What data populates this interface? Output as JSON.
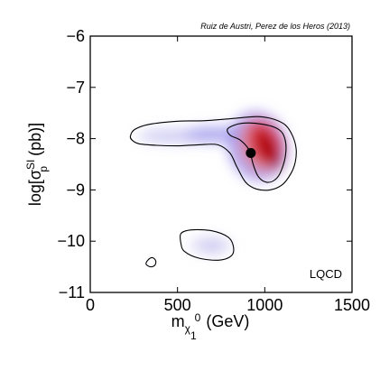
{
  "chart_data": {
    "type": "contour",
    "credit": "Ruiz de Austri, Perez de los Heros (2013)",
    "panel_tag": "LQCD",
    "xlabel": {
      "main": "m",
      "sub": "χ",
      "subsub": "1",
      "sup": "0",
      "unit": "(GeV)"
    },
    "ylabel": {
      "prefix": "log[σ",
      "sup": "SI",
      "sub": "p",
      "suffix": " (pb)]"
    },
    "xlim": [
      0,
      1500
    ],
    "ylim": [
      -11,
      -6
    ],
    "xticks": [
      0,
      500,
      1000,
      1500
    ],
    "xtick_labels": [
      "0",
      "500",
      "1000",
      "1500"
    ],
    "yticks": [
      -11,
      -10,
      -9,
      -8,
      -7,
      -6
    ],
    "ytick_labels": [
      "−11",
      "−10",
      "−9",
      "−8",
      "−7",
      "−6"
    ],
    "best_fit": {
      "x": 920,
      "y": -8.28
    },
    "outer_contours": [
      {
        "id": "main",
        "points": [
          [
            230,
            -7.95
          ],
          [
            255,
            -7.82
          ],
          [
            340,
            -7.72
          ],
          [
            500,
            -7.66
          ],
          [
            660,
            -7.65
          ],
          [
            840,
            -7.6
          ],
          [
            960,
            -7.57
          ],
          [
            1050,
            -7.62
          ],
          [
            1120,
            -7.74
          ],
          [
            1160,
            -7.95
          ],
          [
            1180,
            -8.2
          ],
          [
            1175,
            -8.45
          ],
          [
            1150,
            -8.68
          ],
          [
            1100,
            -8.9
          ],
          [
            1030,
            -9.0
          ],
          [
            950,
            -8.98
          ],
          [
            890,
            -8.85
          ],
          [
            840,
            -8.55
          ],
          [
            800,
            -8.28
          ],
          [
            730,
            -8.12
          ],
          [
            620,
            -8.12
          ],
          [
            500,
            -8.14
          ],
          [
            380,
            -8.13
          ],
          [
            280,
            -8.1
          ],
          [
            240,
            -8.03
          ]
        ]
      },
      {
        "id": "lower",
        "points": [
          [
            520,
            -10.05
          ],
          [
            520,
            -9.85
          ],
          [
            580,
            -9.78
          ],
          [
            700,
            -9.8
          ],
          [
            790,
            -9.92
          ],
          [
            820,
            -10.1
          ],
          [
            810,
            -10.28
          ],
          [
            740,
            -10.37
          ],
          [
            620,
            -10.33
          ],
          [
            540,
            -10.2
          ]
        ]
      },
      {
        "id": "small",
        "points": [
          [
            320,
            -10.45
          ],
          [
            330,
            -10.37
          ],
          [
            355,
            -10.32
          ],
          [
            375,
            -10.38
          ],
          [
            370,
            -10.47
          ],
          [
            345,
            -10.5
          ]
        ]
      }
    ],
    "inner_contour": {
      "points": [
        [
          790,
          -7.8
        ],
        [
          870,
          -7.7
        ],
        [
          990,
          -7.72
        ],
        [
          1080,
          -7.82
        ],
        [
          1115,
          -8.0
        ],
        [
          1120,
          -8.3
        ],
        [
          1095,
          -8.62
        ],
        [
          1060,
          -8.8
        ],
        [
          1010,
          -8.85
        ],
        [
          965,
          -8.75
        ],
        [
          935,
          -8.52
        ],
        [
          910,
          -8.22
        ],
        [
          860,
          -8.03
        ],
        [
          800,
          -7.93
        ]
      ]
    },
    "density_blobs": [
      {
        "x": 490,
        "y": -7.95,
        "rx": 220,
        "ry": 0.13,
        "rotate": 0,
        "color": "#c9c7f2",
        "opacity": 0.9
      },
      {
        "x": 720,
        "y": -7.92,
        "rx": 180,
        "ry": 0.16,
        "rotate": 0,
        "color": "#a8a2ee",
        "opacity": 0.85
      },
      {
        "x": 960,
        "y": -8.15,
        "rx": 170,
        "ry": 0.68,
        "rotate": -14,
        "color": "#9d92ec",
        "opacity": 0.85
      },
      {
        "x": 975,
        "y": -8.15,
        "rx": 125,
        "ry": 0.55,
        "rotate": -18,
        "color": "#d7a0b8",
        "opacity": 0.9
      },
      {
        "x": 995,
        "y": -8.1,
        "rx": 105,
        "ry": 0.48,
        "rotate": -22,
        "color": "#e2505f",
        "opacity": 0.95
      },
      {
        "x": 1010,
        "y": -8.15,
        "rx": 70,
        "ry": 0.42,
        "rotate": -25,
        "color": "#c81a22",
        "opacity": 0.95
      },
      {
        "x": 1030,
        "y": -8.25,
        "rx": 40,
        "ry": 0.38,
        "rotate": -28,
        "color": "#a6000d",
        "opacity": 0.95
      },
      {
        "x": 690,
        "y": -10.08,
        "rx": 120,
        "ry": 0.18,
        "rotate": 0,
        "color": "#dcd9f4",
        "opacity": 0.9
      },
      {
        "x": 700,
        "y": -10.1,
        "rx": 60,
        "ry": 0.09,
        "rotate": 0,
        "color": "#c8c3f0",
        "opacity": 0.9
      },
      {
        "x": 340,
        "y": -10.42,
        "rx": 20,
        "ry": 0.06,
        "rotate": 0,
        "color": "#ececfb",
        "opacity": 0.9
      }
    ]
  }
}
